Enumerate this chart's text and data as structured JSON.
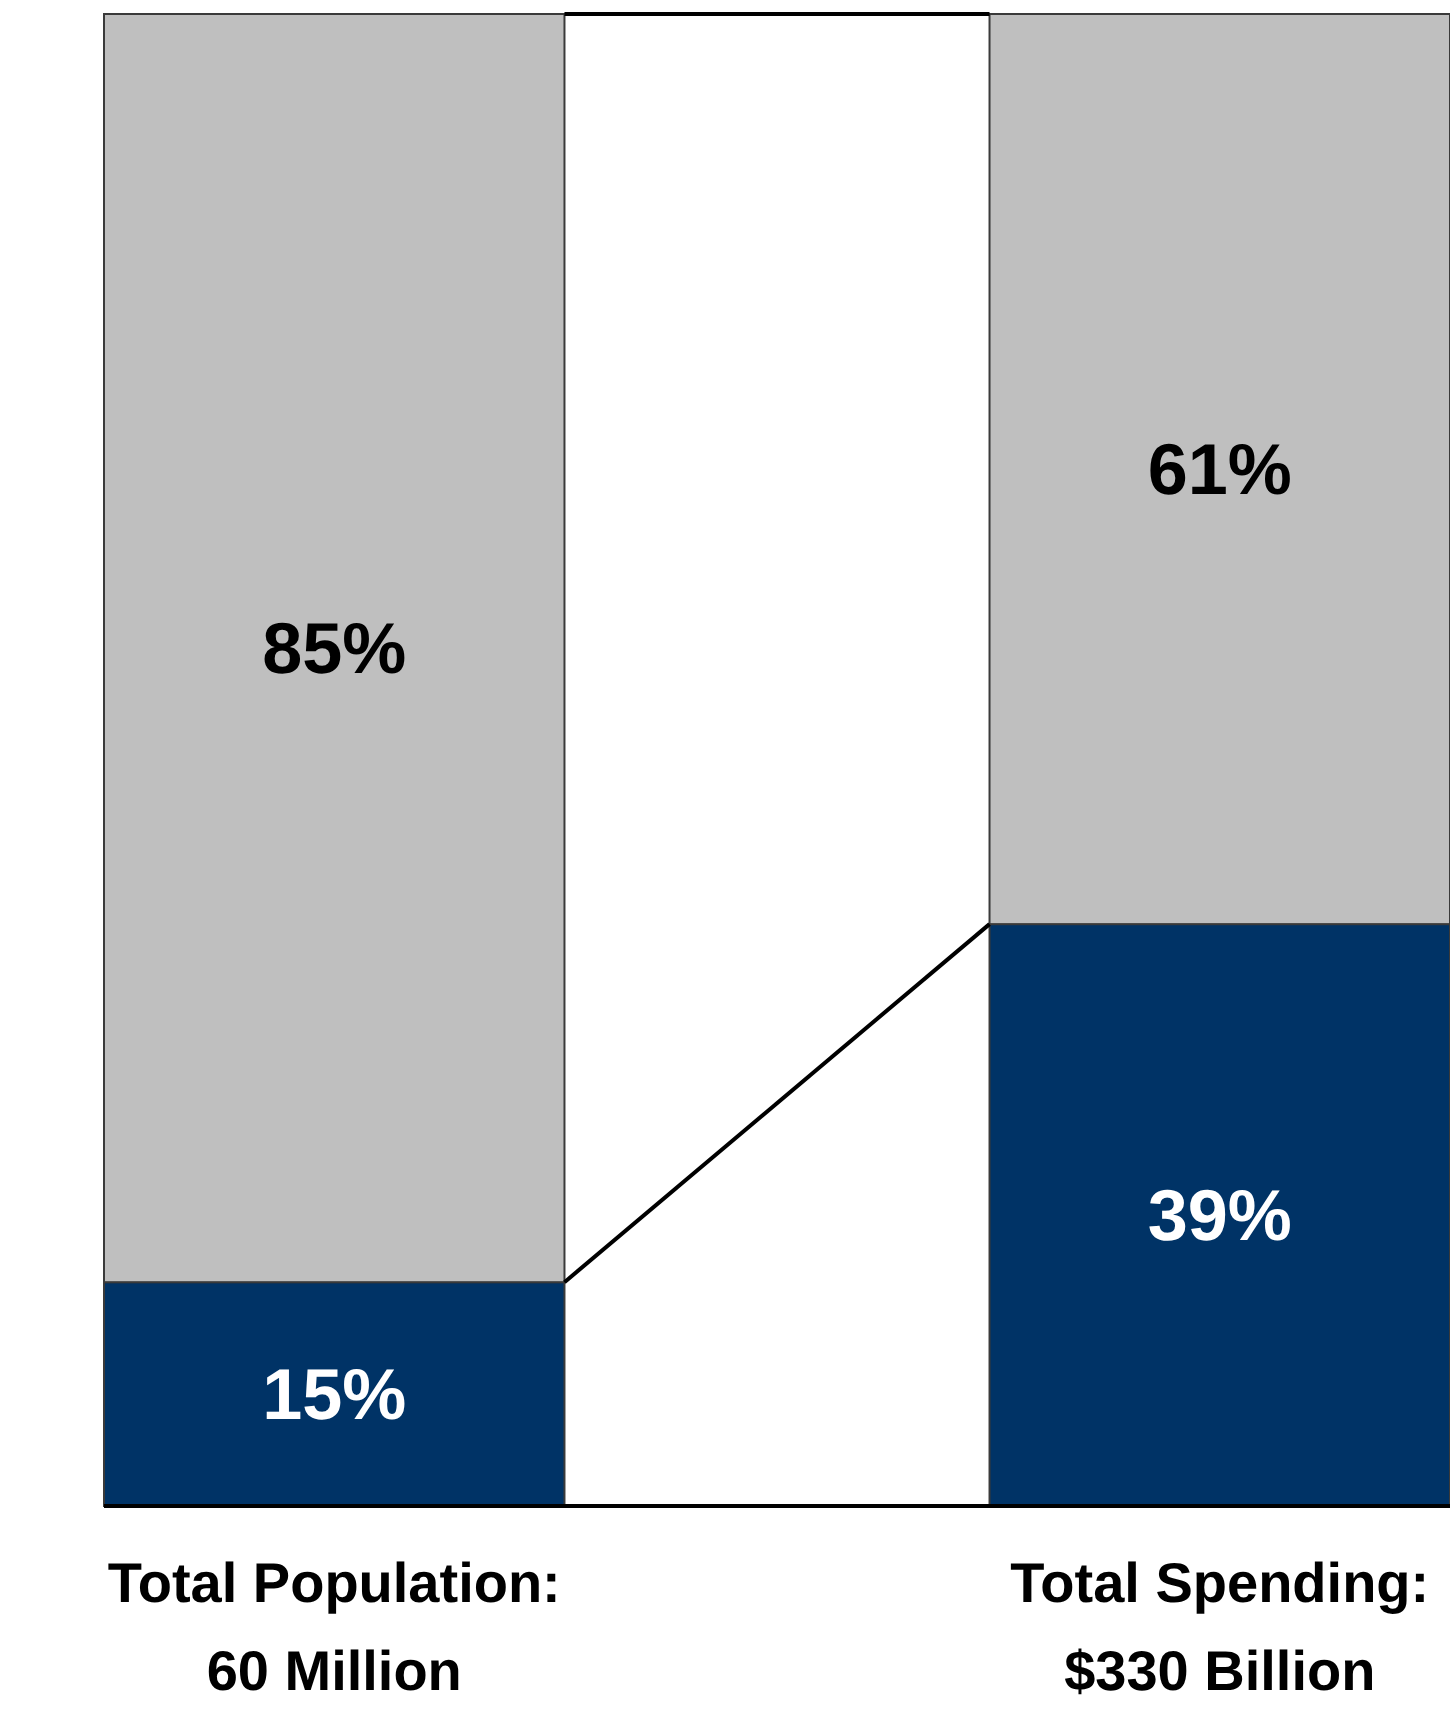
{
  "chart_data": {
    "type": "bar",
    "stacked": true,
    "categories": [
      "Total Population:\n60 Million",
      "Total Spending:\n$330 Billion"
    ],
    "series": [
      {
        "color": "#003366",
        "values": [
          15,
          39
        ],
        "value_labels": [
          "15%",
          "39%"
        ]
      },
      {
        "color": "#bfbfbf",
        "values": [
          85,
          61
        ],
        "value_labels": [
          "85%",
          "61%"
        ]
      }
    ],
    "ylim": [
      0,
      100
    ],
    "tick_labels": "x"
  }
}
